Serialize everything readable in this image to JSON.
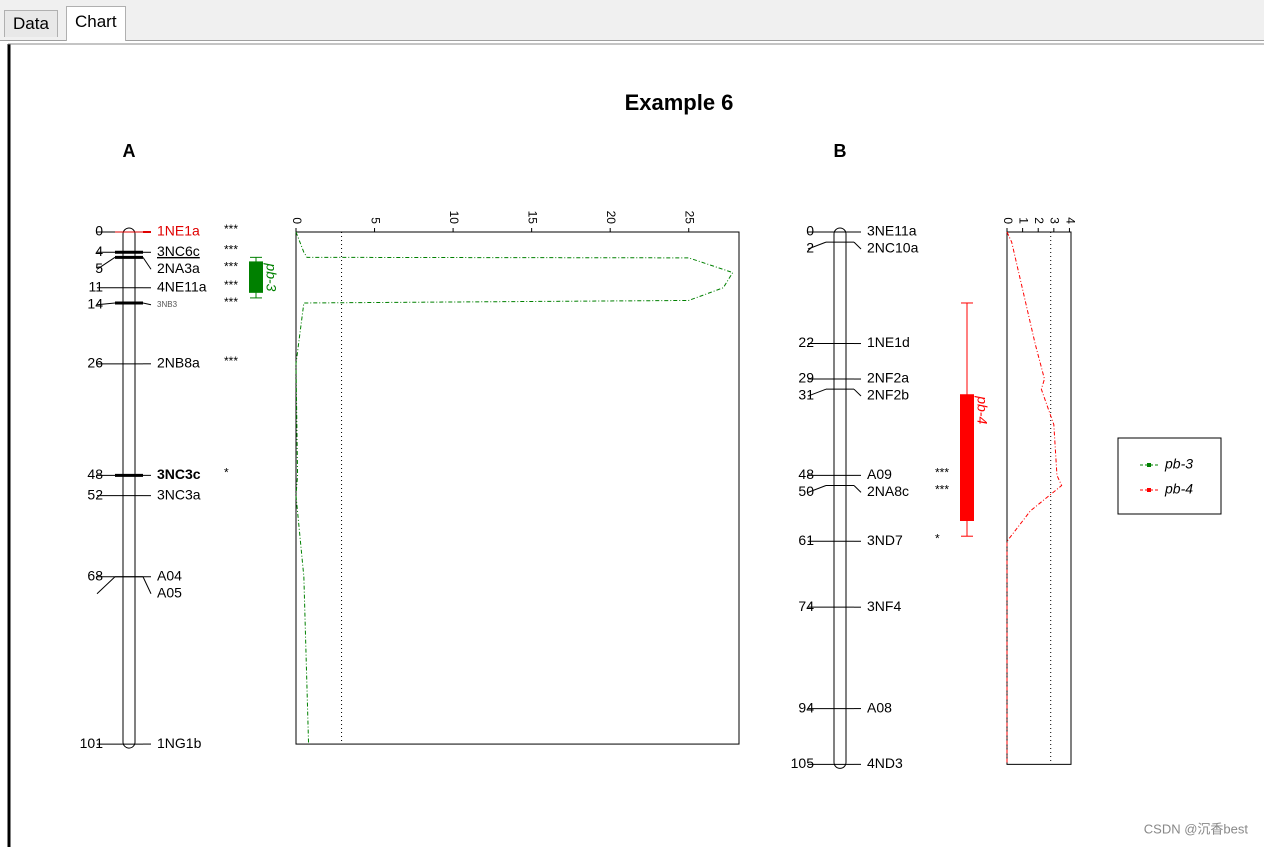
{
  "tabs": [
    "Data",
    "Chart"
  ],
  "title": "Example 6",
  "groups": [
    {
      "name": "A",
      "markers": [
        {
          "pos": 0,
          "label": "1NE1a",
          "sig": "***",
          "color": "#e00000"
        },
        {
          "pos": 4,
          "label": "3NC6c",
          "sig": "***",
          "underline": true,
          "bold_line": true
        },
        {
          "pos": 5,
          "label": "2NA3a",
          "sig": "***",
          "bold_line": true
        },
        {
          "pos": 11,
          "label": "4NE11a",
          "sig": "***"
        },
        {
          "pos": 14,
          "label": "3NB3",
          "sig": "***",
          "small": true,
          "bold_line": true
        },
        {
          "pos": 26,
          "label": "2NB8a",
          "sig": "***"
        },
        {
          "pos": 48,
          "label": "3NC3c",
          "sig": "*",
          "bold": true,
          "bold_line": true
        },
        {
          "pos": 52,
          "label": "3NC3a"
        },
        {
          "pos": 68,
          "label": "A04"
        },
        {
          "pos": 68,
          "label": "A05"
        },
        {
          "pos": 101,
          "label": "1NG1b"
        }
      ],
      "qtl": {
        "name": "pb-3",
        "color": "#008000",
        "whisker": [
          5,
          13
        ],
        "box": [
          5.8,
          12
        ]
      },
      "lod": {
        "xlim": [
          0,
          28.2
        ],
        "xticks": [
          0,
          5,
          10,
          15,
          20,
          25
        ],
        "threshold": 2.9,
        "pos": [
          0,
          4,
          5,
          5.1,
          8,
          11,
          13.5,
          14,
          26,
          48,
          52,
          68,
          101
        ],
        "values": [
          0,
          0.5,
          0.7,
          25,
          27.8,
          27.2,
          25,
          0.5,
          0,
          0.1,
          0,
          0.5,
          0.8
        ]
      }
    },
    {
      "name": "B",
      "markers": [
        {
          "pos": 0,
          "label": "3NE11a"
        },
        {
          "pos": 2,
          "label": "2NC10a"
        },
        {
          "pos": 22,
          "label": "1NE1d"
        },
        {
          "pos": 29,
          "label": "2NF2a"
        },
        {
          "pos": 31,
          "label": "2NF2b"
        },
        {
          "pos": 48,
          "label": "A09",
          "sig": "***"
        },
        {
          "pos": 50,
          "label": "2NA8c",
          "sig": "***"
        },
        {
          "pos": 61,
          "label": "3ND7",
          "sig": "*"
        },
        {
          "pos": 74,
          "label": "3NF4"
        },
        {
          "pos": 94,
          "label": "A08"
        },
        {
          "pos": 105,
          "label": "4ND3"
        }
      ],
      "qtl": {
        "name": "pb-4",
        "color": "#ff0000",
        "whisker": [
          14,
          60
        ],
        "box": [
          32,
          57
        ]
      },
      "lod": {
        "xlim": [
          0,
          4.1
        ],
        "xticks": [
          0,
          1,
          2,
          3,
          4
        ],
        "threshold": 2.8,
        "pos": [
          0,
          2,
          22,
          29,
          31,
          38,
          48,
          50,
          55,
          61,
          74,
          94,
          105
        ],
        "values": [
          0,
          0.3,
          1.8,
          2.4,
          2.2,
          3,
          3.2,
          3.5,
          1.5,
          0,
          0,
          0,
          0
        ]
      }
    }
  ],
  "watermark": "CSDN @沉香best"
}
